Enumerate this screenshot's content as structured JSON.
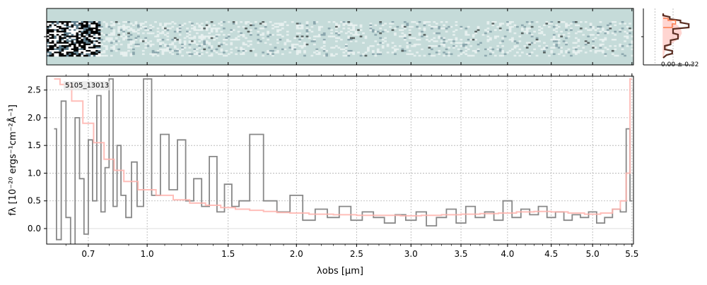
{
  "chart_data": [
    {
      "panel": "2d-spectrum",
      "type": "heatmap",
      "background_color": "#c5dbd9",
      "colormap": [
        "#ffffff",
        "#c5dbd9",
        "#5e7d8c",
        "#000000"
      ],
      "y_tick_value": 0
    },
    {
      "panel": "profile",
      "type": "line",
      "annotation": "0.00 ± 0.32",
      "xlim": [
        -1.2,
        1.8
      ],
      "series": [
        {
          "color": "#ffb3ad",
          "fill": true,
          "points": [
            [
              0,
              -3.3
            ],
            [
              0.07,
              -3.0
            ],
            [
              0.22,
              -2.5
            ],
            [
              0.55,
              -2.0
            ],
            [
              0.9,
              -1.5
            ],
            [
              1.05,
              -1.0
            ],
            [
              1.1,
              -0.5
            ],
            [
              1.0,
              0.0
            ],
            [
              0.75,
              0.5
            ],
            [
              0.45,
              1.0
            ],
            [
              0.22,
              1.5
            ],
            [
              0.09,
              2.0
            ],
            [
              0.03,
              2.5
            ],
            [
              0,
              3.0
            ]
          ]
        },
        {
          "color": "#5a2e22",
          "fill": false,
          "points": [
            [
              0,
              -3.3
            ],
            [
              0,
              -3.0
            ],
            [
              0.4,
              -2.8
            ],
            [
              0.4,
              -2.5
            ],
            [
              1.05,
              -2.3
            ],
            [
              1.05,
              -2.0
            ],
            [
              1.55,
              -1.8
            ],
            [
              1.55,
              -1.3
            ],
            [
              0.6,
              -1.1
            ],
            [
              0.6,
              -0.5
            ],
            [
              0.9,
              -0.3
            ],
            [
              0.9,
              0.3
            ],
            [
              0.45,
              0.5
            ],
            [
              0.45,
              1.1
            ],
            [
              0.1,
              1.3
            ],
            [
              0.1,
              1.8
            ],
            [
              0.55,
              2.0
            ],
            [
              0.55,
              2.4
            ],
            [
              0.2,
              2.6
            ],
            [
              0,
              3.0
            ]
          ]
        },
        {
          "color": "#ff7f50",
          "fill": false,
          "points": [
            [
              0,
              -2.6
            ],
            [
              0.3,
              -2.6
            ],
            [
              0.3,
              -2.3
            ],
            [
              0.75,
              -2.3
            ],
            [
              0.75,
              -1.8
            ],
            [
              0.55,
              -1.8
            ],
            [
              0.55,
              -1.3
            ],
            [
              0,
              -1.3
            ]
          ]
        }
      ]
    },
    {
      "panel": "1d-spectrum",
      "type": "line",
      "label": "5105_13013",
      "xlabel": "λobs [μm]",
      "ylabel": "fλ [10⁻²⁰ ergs⁻¹cm⁻²Å⁻¹]",
      "xlim": [
        0.52,
        5.52
      ],
      "ylim": [
        -0.28,
        2.75
      ],
      "xscale": "sqrt",
      "x_ticks": [
        {
          "value": 0.7,
          "label": "0.7"
        },
        {
          "value": 1.0,
          "label": "1.0"
        },
        {
          "value": 1.5,
          "label": "1.5"
        },
        {
          "value": 2.0,
          "label": "2.0"
        },
        {
          "value": 2.5,
          "label": "2.5"
        },
        {
          "value": 3.0,
          "label": "3.0"
        },
        {
          "value": 3.5,
          "label": "3.5"
        },
        {
          "value": 4.0,
          "label": "4.0"
        },
        {
          "value": 4.5,
          "label": "4.5"
        },
        {
          "value": 5.0,
          "label": "5.0"
        },
        {
          "value": 5.5,
          "label": "5.5"
        }
      ],
      "y_ticks": [
        {
          "value": 0.0,
          "label": "0.0"
        },
        {
          "value": 0.5,
          "label": "0.5"
        },
        {
          "value": 1.0,
          "label": "1.0"
        },
        {
          "value": 1.5,
          "label": "1.5"
        },
        {
          "value": 2.0,
          "label": "2.0"
        },
        {
          "value": 2.5,
          "label": "2.5"
        }
      ],
      "grid": true,
      "zero_line": true,
      "series": [
        {
          "style": "step",
          "color": "#888888",
          "x": [
            0.55,
            0.57,
            0.59,
            0.61,
            0.63,
            0.65,
            0.67,
            0.69,
            0.71,
            0.73,
            0.75,
            0.77,
            0.79,
            0.81,
            0.83,
            0.85,
            0.87,
            0.9,
            0.93,
            0.96,
            1.0,
            1.05,
            1.1,
            1.15,
            1.2,
            1.25,
            1.3,
            1.35,
            1.4,
            1.45,
            1.5,
            1.55,
            1.6,
            1.7,
            1.8,
            1.9,
            2.0,
            2.1,
            2.2,
            2.3,
            2.4,
            2.5,
            2.6,
            2.7,
            2.8,
            2.9,
            3.0,
            3.1,
            3.2,
            3.3,
            3.4,
            3.5,
            3.6,
            3.7,
            3.8,
            3.9,
            4.0,
            4.1,
            4.2,
            4.3,
            4.4,
            4.5,
            4.6,
            4.7,
            4.8,
            4.9,
            5.0,
            5.1,
            5.2,
            5.3,
            5.4,
            5.45,
            5.5
          ],
          "y": [
            1.8,
            -0.2,
            2.3,
            0.2,
            -0.3,
            2.0,
            0.9,
            -0.1,
            1.6,
            0.5,
            2.4,
            0.3,
            1.1,
            2.7,
            0.4,
            1.5,
            0.6,
            0.2,
            1.2,
            0.4,
            2.7,
            0.6,
            1.7,
            0.7,
            1.6,
            0.5,
            0.9,
            0.4,
            1.3,
            0.3,
            0.8,
            0.4,
            0.5,
            1.7,
            0.5,
            0.3,
            0.6,
            0.15,
            0.35,
            0.2,
            0.4,
            0.15,
            0.3,
            0.2,
            0.1,
            0.25,
            0.15,
            0.3,
            0.05,
            0.2,
            0.35,
            0.1,
            0.4,
            0.2,
            0.3,
            0.15,
            0.5,
            0.2,
            0.35,
            0.25,
            0.4,
            0.2,
            0.3,
            0.15,
            0.25,
            0.2,
            0.3,
            0.1,
            0.2,
            0.35,
            0.3,
            1.8,
            0.5
          ]
        },
        {
          "style": "step",
          "color": "#ffb3ad",
          "x": [
            0.55,
            0.6,
            0.65,
            0.7,
            0.75,
            0.8,
            0.85,
            0.9,
            1.0,
            1.1,
            1.2,
            1.3,
            1.4,
            1.5,
            1.6,
            1.7,
            1.8,
            1.9,
            2.0,
            2.2,
            2.4,
            2.6,
            2.8,
            3.0,
            3.2,
            3.4,
            3.6,
            3.8,
            4.0,
            4.2,
            4.4,
            4.6,
            4.8,
            5.0,
            5.2,
            5.3,
            5.4,
            5.45,
            5.5
          ],
          "y": [
            2.7,
            2.6,
            2.3,
            1.9,
            1.55,
            1.25,
            1.05,
            0.85,
            0.7,
            0.6,
            0.52,
            0.46,
            0.42,
            0.38,
            0.35,
            0.33,
            0.31,
            0.29,
            0.28,
            0.26,
            0.25,
            0.24,
            0.24,
            0.23,
            0.24,
            0.25,
            0.26,
            0.27,
            0.28,
            0.3,
            0.31,
            0.3,
            0.28,
            0.26,
            0.28,
            0.35,
            0.5,
            1.0,
            2.7
          ]
        }
      ]
    }
  ]
}
